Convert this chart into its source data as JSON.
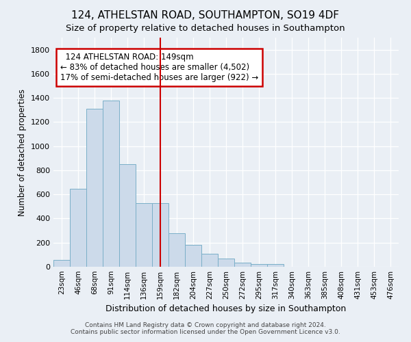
{
  "title": "124, ATHELSTAN ROAD, SOUTHAMPTON, SO19 4DF",
  "subtitle": "Size of property relative to detached houses in Southampton",
  "xlabel": "Distribution of detached houses by size in Southampton",
  "ylabel": "Number of detached properties",
  "footnote1": "Contains HM Land Registry data © Crown copyright and database right 2024.",
  "footnote2": "Contains public sector information licensed under the Open Government Licence v3.0.",
  "bar_labels": [
    "23sqm",
    "46sqm",
    "68sqm",
    "91sqm",
    "114sqm",
    "136sqm",
    "159sqm",
    "182sqm",
    "204sqm",
    "227sqm",
    "250sqm",
    "272sqm",
    "295sqm",
    "317sqm",
    "340sqm",
    "363sqm",
    "385sqm",
    "408sqm",
    "431sqm",
    "453sqm",
    "476sqm"
  ],
  "bar_values": [
    55,
    645,
    1310,
    1380,
    850,
    530,
    530,
    280,
    180,
    105,
    70,
    35,
    25,
    20,
    0,
    0,
    0,
    0,
    0,
    0,
    0
  ],
  "bar_color": "#ccdaea",
  "bar_edgecolor": "#7aafc8",
  "vline_x": 6.0,
  "vline_color": "#cc0000",
  "annotation_text": "  124 ATHELSTAN ROAD: 149sqm\n← 83% of detached houses are smaller (4,502)\n17% of semi-detached houses are larger (922) →",
  "annotation_box_color": "#cc0000",
  "ylim": [
    0,
    1900
  ],
  "yticks": [
    0,
    200,
    400,
    600,
    800,
    1000,
    1200,
    1400,
    1600,
    1800
  ],
  "bg_color": "#eaeff5",
  "plot_bg_color": "#eaeff5",
  "title_fontsize": 11,
  "subtitle_fontsize": 9.5,
  "grid_color": "#ffffff"
}
